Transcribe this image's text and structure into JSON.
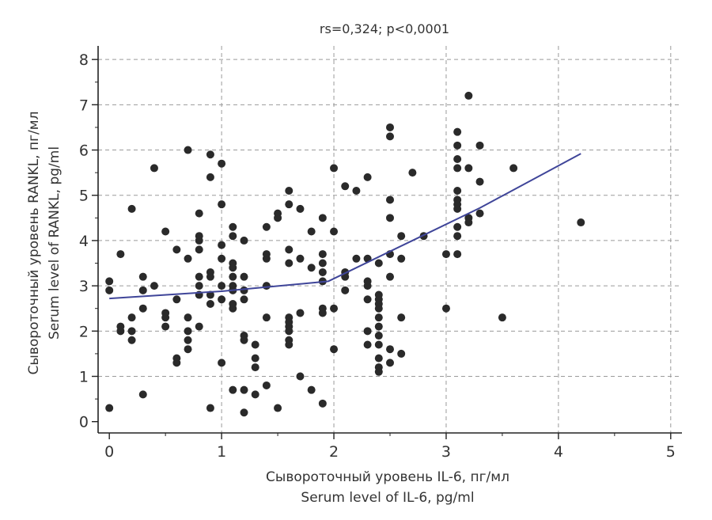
{
  "chart_data": {
    "type": "scatter",
    "title": "rs=0,324; p<0,0001",
    "xlabel": [
      "Сывороточный уровень IL-6, пг/мл",
      "Serum level of IL-6, pg/ml"
    ],
    "ylabel": [
      "Сывороточный уровень RANKL, пг/мл",
      "Serum level of RANKL, pg/ml"
    ],
    "xlim": [
      -0.1,
      5.1
    ],
    "ylim": [
      -0.25,
      8.3
    ],
    "xticks": [
      0,
      1,
      2,
      3,
      4,
      5
    ],
    "yticks": [
      0,
      1,
      2,
      3,
      4,
      5,
      6,
      7,
      8
    ],
    "grid": "dashed",
    "colors": {
      "points": "#2a2a2a",
      "fit_line": "#3f4599",
      "grid": "#9a9a9a",
      "axis": "#222222"
    },
    "points": [
      [
        0,
        3.1
      ],
      [
        0,
        2.9
      ],
      [
        0,
        0.3
      ],
      [
        0.1,
        3.7
      ],
      [
        0.1,
        2.1
      ],
      [
        0.1,
        2.0
      ],
      [
        0.2,
        4.7
      ],
      [
        0.2,
        2.3
      ],
      [
        0.2,
        2.0
      ],
      [
        0.2,
        1.8
      ],
      [
        0.3,
        3.2
      ],
      [
        0.3,
        2.9
      ],
      [
        0.3,
        2.5
      ],
      [
        0.3,
        0.6
      ],
      [
        0.4,
        5.6
      ],
      [
        0.4,
        3.0
      ],
      [
        0.5,
        4.2
      ],
      [
        0.5,
        2.4
      ],
      [
        0.5,
        2.3
      ],
      [
        0.5,
        2.1
      ],
      [
        0.6,
        3.8
      ],
      [
        0.6,
        2.7
      ],
      [
        0.6,
        1.4
      ],
      [
        0.6,
        1.3
      ],
      [
        0.7,
        6.0
      ],
      [
        0.7,
        3.6
      ],
      [
        0.7,
        2.3
      ],
      [
        0.7,
        2.0
      ],
      [
        0.7,
        1.8
      ],
      [
        0.7,
        1.6
      ],
      [
        0.8,
        4.6
      ],
      [
        0.8,
        4.1
      ],
      [
        0.8,
        4.0
      ],
      [
        0.8,
        3.8
      ],
      [
        0.8,
        3.2
      ],
      [
        0.8,
        3.0
      ],
      [
        0.8,
        2.8
      ],
      [
        0.8,
        2.1
      ],
      [
        0.9,
        5.9
      ],
      [
        0.9,
        5.4
      ],
      [
        0.9,
        3.3
      ],
      [
        0.9,
        3.2
      ],
      [
        0.9,
        2.8
      ],
      [
        0.9,
        2.6
      ],
      [
        0.9,
        0.3
      ],
      [
        1.0,
        5.7
      ],
      [
        1.0,
        4.8
      ],
      [
        1.0,
        3.9
      ],
      [
        1.0,
        3.6
      ],
      [
        1.0,
        3.0
      ],
      [
        1.0,
        2.7
      ],
      [
        1.0,
        1.3
      ],
      [
        1.1,
        4.3
      ],
      [
        1.1,
        4.1
      ],
      [
        1.1,
        3.5
      ],
      [
        1.1,
        3.4
      ],
      [
        1.1,
        3.2
      ],
      [
        1.1,
        3.0
      ],
      [
        1.1,
        2.9
      ],
      [
        1.1,
        2.6
      ],
      [
        1.1,
        2.5
      ],
      [
        1.1,
        0.7
      ],
      [
        1.2,
        4.0
      ],
      [
        1.2,
        3.2
      ],
      [
        1.2,
        2.9
      ],
      [
        1.2,
        2.7
      ],
      [
        1.2,
        1.9
      ],
      [
        1.2,
        1.8
      ],
      [
        1.2,
        0.7
      ],
      [
        1.2,
        0.2
      ],
      [
        1.3,
        1.7
      ],
      [
        1.3,
        1.4
      ],
      [
        1.3,
        1.2
      ],
      [
        1.3,
        0.6
      ],
      [
        1.4,
        4.3
      ],
      [
        1.4,
        3.7
      ],
      [
        1.4,
        3.6
      ],
      [
        1.4,
        3.0
      ],
      [
        1.4,
        2.3
      ],
      [
        1.4,
        0.8
      ],
      [
        1.5,
        4.6
      ],
      [
        1.5,
        4.5
      ],
      [
        1.5,
        0.3
      ],
      [
        1.6,
        5.1
      ],
      [
        1.6,
        4.8
      ],
      [
        1.6,
        3.8
      ],
      [
        1.6,
        3.5
      ],
      [
        1.6,
        2.3
      ],
      [
        1.6,
        2.2
      ],
      [
        1.6,
        2.1
      ],
      [
        1.6,
        2.0
      ],
      [
        1.6,
        1.8
      ],
      [
        1.6,
        1.7
      ],
      [
        1.7,
        4.7
      ],
      [
        1.7,
        3.6
      ],
      [
        1.7,
        2.4
      ],
      [
        1.7,
        1.0
      ],
      [
        1.8,
        4.2
      ],
      [
        1.8,
        3.4
      ],
      [
        1.8,
        0.7
      ],
      [
        1.9,
        4.5
      ],
      [
        1.9,
        3.7
      ],
      [
        1.9,
        3.5
      ],
      [
        1.9,
        3.3
      ],
      [
        1.9,
        3.1
      ],
      [
        1.9,
        2.5
      ],
      [
        1.9,
        2.4
      ],
      [
        1.9,
        0.4
      ],
      [
        2.0,
        5.6
      ],
      [
        2.0,
        4.2
      ],
      [
        2.0,
        2.5
      ],
      [
        2.0,
        1.6
      ],
      [
        2.1,
        5.2
      ],
      [
        2.1,
        3.3
      ],
      [
        2.1,
        3.2
      ],
      [
        2.1,
        2.9
      ],
      [
        2.2,
        5.1
      ],
      [
        2.2,
        3.6
      ],
      [
        2.3,
        5.4
      ],
      [
        2.3,
        3.6
      ],
      [
        2.3,
        3.1
      ],
      [
        2.3,
        3.0
      ],
      [
        2.3,
        2.7
      ],
      [
        2.3,
        2.0
      ],
      [
        2.3,
        1.7
      ],
      [
        2.4,
        3.5
      ],
      [
        2.4,
        2.8
      ],
      [
        2.4,
        2.7
      ],
      [
        2.4,
        2.6
      ],
      [
        2.4,
        2.5
      ],
      [
        2.4,
        2.3
      ],
      [
        2.4,
        2.1
      ],
      [
        2.4,
        1.9
      ],
      [
        2.4,
        1.7
      ],
      [
        2.4,
        1.4
      ],
      [
        2.4,
        1.2
      ],
      [
        2.4,
        1.1
      ],
      [
        2.5,
        6.5
      ],
      [
        2.5,
        6.3
      ],
      [
        2.5,
        4.9
      ],
      [
        2.5,
        4.5
      ],
      [
        2.5,
        3.7
      ],
      [
        2.5,
        3.2
      ],
      [
        2.5,
        1.6
      ],
      [
        2.5,
        1.3
      ],
      [
        2.6,
        4.1
      ],
      [
        2.6,
        3.6
      ],
      [
        2.6,
        2.3
      ],
      [
        2.6,
        1.5
      ],
      [
        2.7,
        5.5
      ],
      [
        2.8,
        4.1
      ],
      [
        3.0,
        3.7
      ],
      [
        3.0,
        2.5
      ],
      [
        3.1,
        6.4
      ],
      [
        3.1,
        6.1
      ],
      [
        3.1,
        5.8
      ],
      [
        3.1,
        5.6
      ],
      [
        3.1,
        5.1
      ],
      [
        3.1,
        4.9
      ],
      [
        3.1,
        4.8
      ],
      [
        3.1,
        4.7
      ],
      [
        3.1,
        4.3
      ],
      [
        3.1,
        4.1
      ],
      [
        3.1,
        3.7
      ],
      [
        3.2,
        7.2
      ],
      [
        3.2,
        5.6
      ],
      [
        3.2,
        4.5
      ],
      [
        3.2,
        4.4
      ],
      [
        3.3,
        6.1
      ],
      [
        3.3,
        5.3
      ],
      [
        3.3,
        4.6
      ],
      [
        3.5,
        2.3
      ],
      [
        3.6,
        5.6
      ],
      [
        4.2,
        4.4
      ]
    ],
    "fit_line": [
      [
        0,
        2.72
      ],
      [
        1,
        2.88
      ],
      [
        1.95,
        3.1
      ],
      [
        2.05,
        3.22
      ],
      [
        2.7,
        4.0
      ],
      [
        3.3,
        4.72
      ],
      [
        4.2,
        5.92
      ]
    ]
  }
}
